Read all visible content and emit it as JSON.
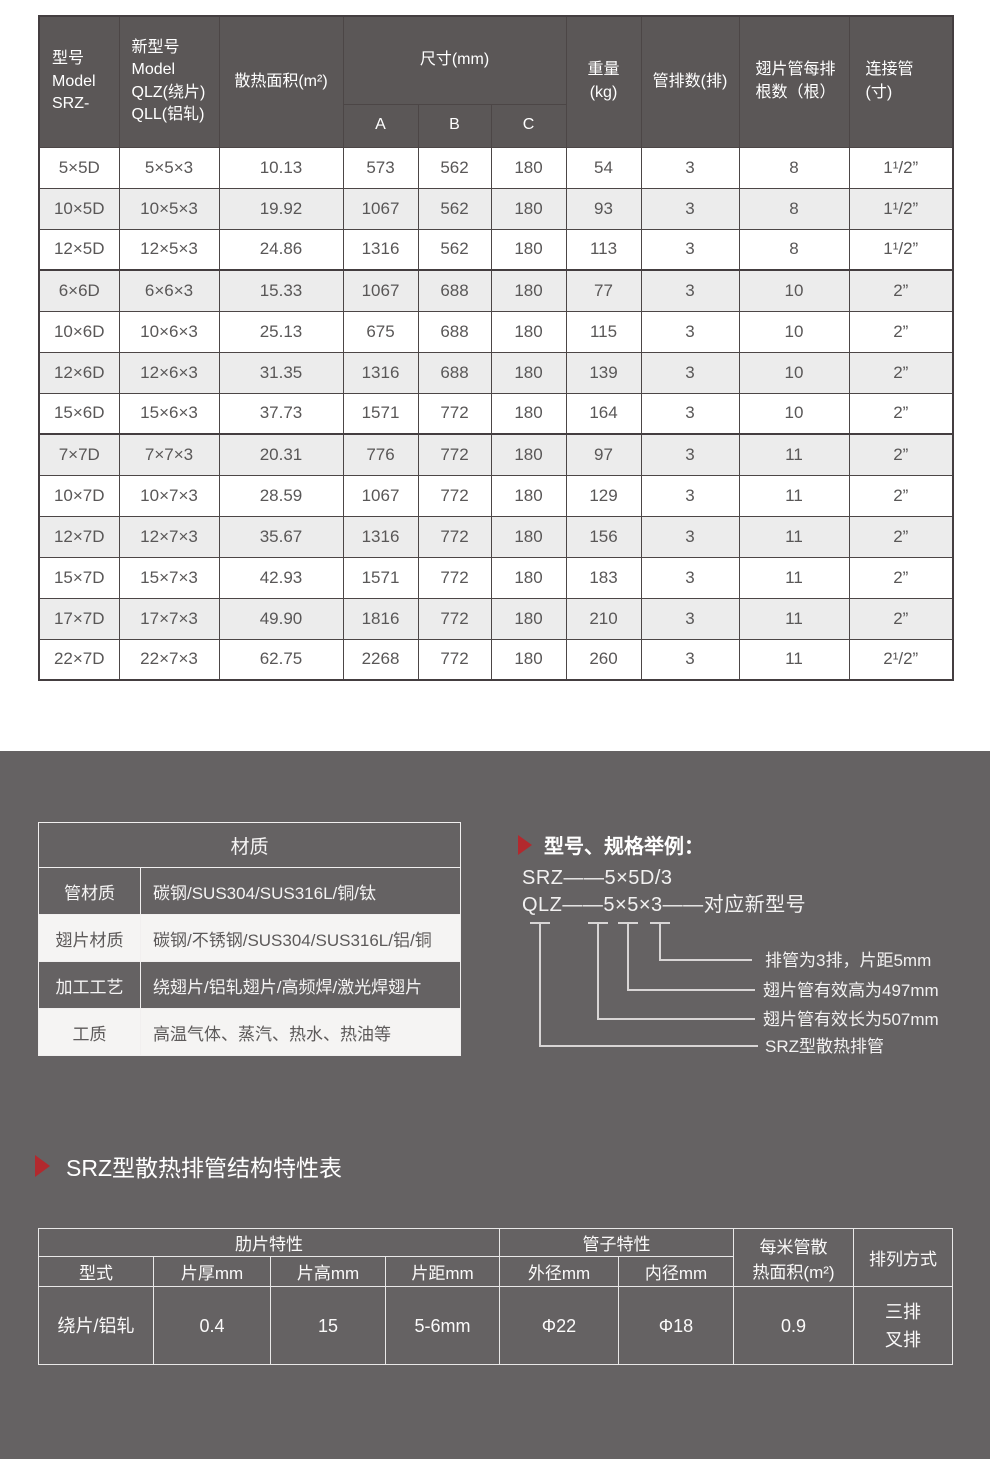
{
  "colors": {
    "accent_red": "#b2292e",
    "header_bg": "#5b5757",
    "section_bg": "#656263"
  },
  "spec_table": {
    "headers": {
      "model": "型号\nModel\nSRZ-",
      "new_model": "新型号\nModel\nQLZ(绕片)\nQLL(铝轧)",
      "area": "散热面积(m²)",
      "dimensions": "尺寸(mm)",
      "dim_a": "A",
      "dim_b": "B",
      "dim_c": "C",
      "weight": "重量\n(kg)",
      "tube_rows": "管排数(排)",
      "fins_per_row": "翅片管每排\n根数（根）",
      "connection": "连接管\n(寸)"
    },
    "rows": [
      [
        "5×5D",
        "5×5×3",
        "10.13",
        "573",
        "562",
        "180",
        "54",
        "3",
        "8",
        "1¹/2”"
      ],
      [
        "10×5D",
        "10×5×3",
        "19.92",
        "1067",
        "562",
        "180",
        "93",
        "3",
        "8",
        "1¹/2”"
      ],
      [
        "12×5D",
        "12×5×3",
        "24.86",
        "1316",
        "562",
        "180",
        "113",
        "3",
        "8",
        "1¹/2”"
      ],
      [
        "6×6D",
        "6×6×3",
        "15.33",
        "1067",
        "688",
        "180",
        "77",
        "3",
        "10",
        "2”"
      ],
      [
        "10×6D",
        "10×6×3",
        "25.13",
        "675",
        "688",
        "180",
        "115",
        "3",
        "10",
        "2”"
      ],
      [
        "12×6D",
        "12×6×3",
        "31.35",
        "1316",
        "688",
        "180",
        "139",
        "3",
        "10",
        "2”"
      ],
      [
        "15×6D",
        "15×6×3",
        "37.73",
        "1571",
        "772",
        "180",
        "164",
        "3",
        "10",
        "2”"
      ],
      [
        "7×7D",
        "7×7×3",
        "20.31",
        "776",
        "772",
        "180",
        "97",
        "3",
        "11",
        "2”"
      ],
      [
        "10×7D",
        "10×7×3",
        "28.59",
        "1067",
        "772",
        "180",
        "129",
        "3",
        "11",
        "2”"
      ],
      [
        "12×7D",
        "12×7×3",
        "35.67",
        "1316",
        "772",
        "180",
        "156",
        "3",
        "11",
        "2”"
      ],
      [
        "15×7D",
        "15×7×3",
        "42.93",
        "1571",
        "772",
        "180",
        "183",
        "3",
        "11",
        "2”"
      ],
      [
        "17×7D",
        "17×7×3",
        "49.90",
        "1816",
        "772",
        "180",
        "210",
        "3",
        "11",
        "2”"
      ],
      [
        "22×7D",
        "22×7×3",
        "62.75",
        "2268",
        "772",
        "180",
        "260",
        "3",
        "11",
        "2¹/2”"
      ]
    ]
  },
  "material_table": {
    "title": "材质",
    "rows": [
      {
        "label": "管材质",
        "value": "碳钢/SUS304/SUS316L/铜/钛"
      },
      {
        "label": "翅片材质",
        "value": "碳钢/不锈钢/SUS304/SUS316L/铝/铜"
      },
      {
        "label": "加工工艺",
        "value": "绕翅片/铝轧翅片/高频焊/激光焊翅片"
      },
      {
        "label": "工质",
        "value": "高温气体、蒸汽、热水、热油等"
      }
    ]
  },
  "example": {
    "title": "型号、规格举例：",
    "line1": "SRZ——5×5D/3",
    "line2": "QLZ——5×5×3——对应新型号",
    "callouts": [
      "排管为3排，片距5mm",
      "翅片管有效高为497mm",
      "翅片管有效长为507mm",
      "SRZ型散热排管"
    ]
  },
  "feature_section": {
    "title": "SRZ型散热排管结构特性表"
  },
  "feature_table": {
    "fin_group": "肋片特性",
    "tube_group": "管子特性",
    "per_meter_label": "每米管散\n热面积(m²)",
    "arrangement_label": "排列方式",
    "headers": [
      "型式",
      "片厚mm",
      "片高mm",
      "片距mm",
      "外径mm",
      "内径mm"
    ],
    "values": [
      "绕片/铝轧",
      "0.4",
      "15",
      "5-6mm",
      "Φ22",
      "Φ18",
      "0.9"
    ],
    "arrangement_value": "三排\n叉排"
  }
}
